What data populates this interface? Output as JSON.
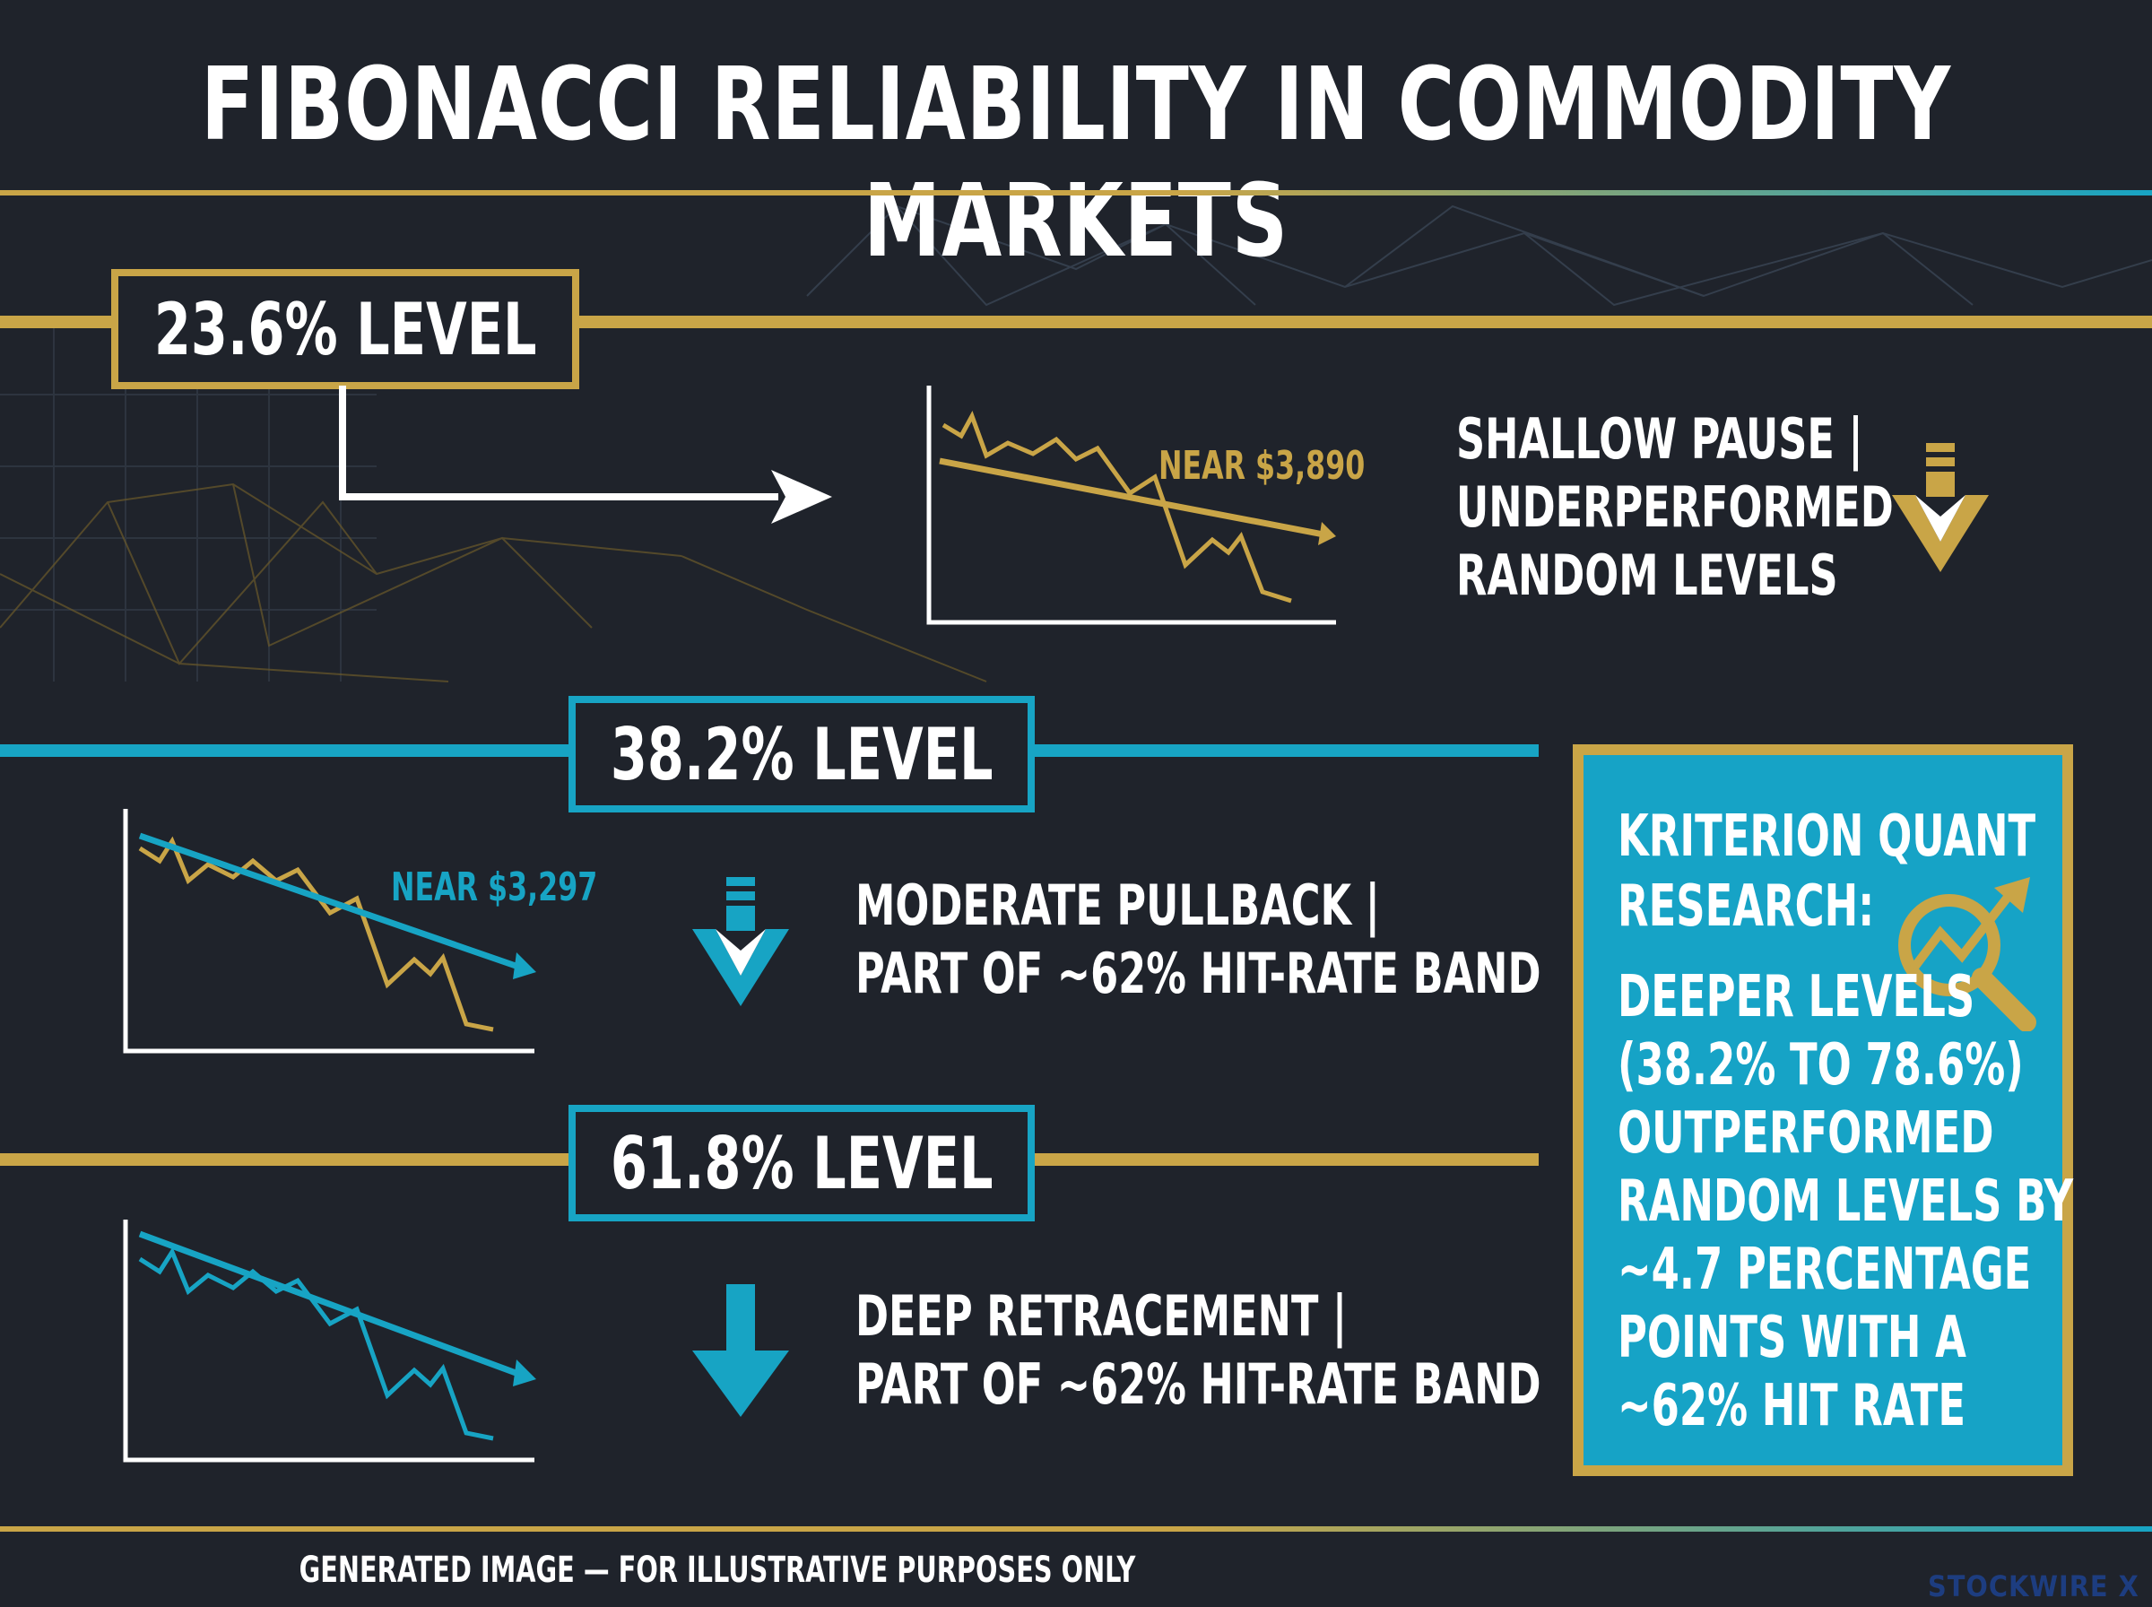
{
  "title": "FIBONACCI RELIABILITY IN COMMODITY MARKETS",
  "colors": {
    "background": "#1f232b",
    "gold": "#c9a547",
    "blue": "#17a4c4",
    "panel": "#16a3c6"
  },
  "levels": [
    {
      "label": "23.6% LEVEL",
      "near": "NEAR $3,890",
      "desc_lines": [
        "SHALLOW PAUSE |",
        "UNDERPERFORMED",
        "RANDOM LEVELS"
      ],
      "icon": "gold-down-chevron-arrow-icon"
    },
    {
      "label": "38.2% LEVEL",
      "near": "NEAR $3,297",
      "desc_lines": [
        "MODERATE PULLBACK |",
        "PART OF ~62% HIT-RATE BAND"
      ],
      "icon": "blue-down-chevron-arrow-icon"
    },
    {
      "label": "61.8% LEVEL",
      "desc_lines": [
        "DEEP RETRACEMENT |",
        "PART OF ~62% HIT-RATE BAND"
      ],
      "icon": "blue-down-arrow-icon"
    }
  ],
  "research": {
    "heading_lines": [
      "KRITERION QUANT",
      "RESEARCH:"
    ],
    "body_lines": [
      "DEEPER LEVELS",
      "(38.2% TO 78.6%)",
      "OUTPERFORMED",
      "RANDOM LEVELS BY",
      "~4.7 PERCENTAGE",
      "POINTS WITH A",
      "~62% HIT RATE"
    ],
    "icon": "magnifier-chart-icon"
  },
  "footer": "GENERATED IMAGE — FOR ILLUSTRATIVE PURPOSES ONLY",
  "brand": "STOCKWIRE X"
}
